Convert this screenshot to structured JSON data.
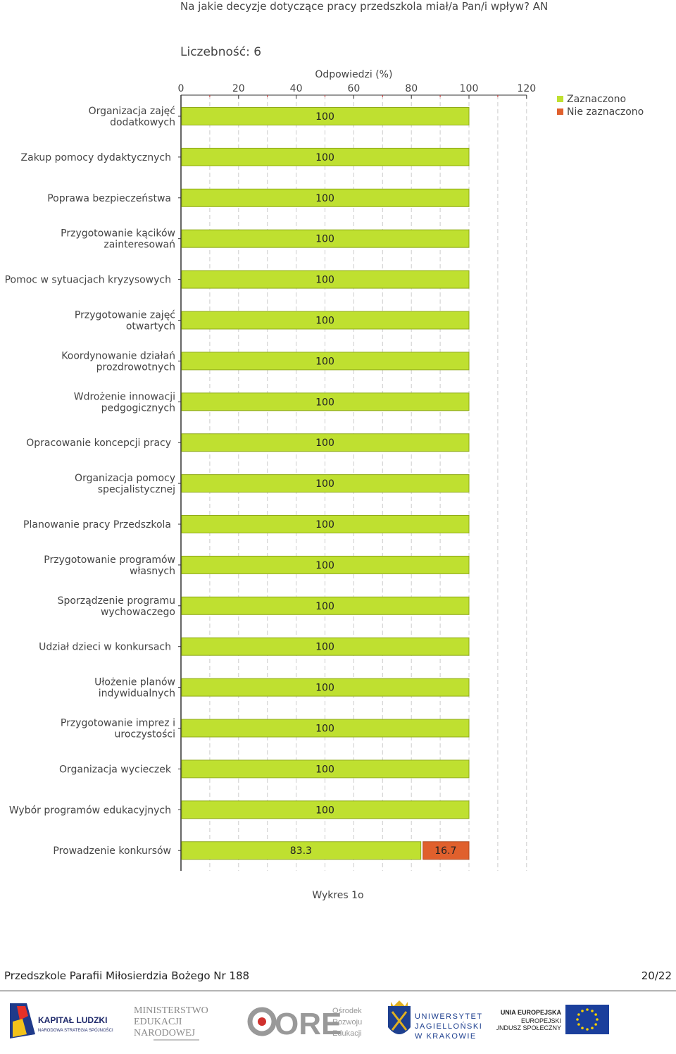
{
  "page_title": "Na jakie decyzje dotyczące pracy przedszkola miał/a Pan/i wpływ? AN",
  "caption": "Wykres 1o",
  "footer": {
    "institution": "Przedszkole Parafii Miłosierdzia Bożego Nr 188",
    "page": "20/22"
  },
  "logos": {
    "kapital": {
      "line1": "KAPITAŁ LUDZKI",
      "line2": "NARODOWA STRATEGIA SPÓJNOŚCI"
    },
    "men": {
      "line1": "MINISTERSTWO",
      "line2": "EDUKACJI",
      "line3": "NARODOWEJ"
    },
    "ore": {
      "mark": "ORE",
      "line1": "Ośrodek",
      "line2": "Rozwoju",
      "line3": "Edukacji"
    },
    "uj": {
      "line1": "UNIWERSYTET",
      "line2": "JAGIELLOŃSKI",
      "line3": "W KRAKOWIE"
    },
    "ue": {
      "line1": "UNIA EUROPEJSKA",
      "line2": "EUROPEJSKI",
      "line3": "FUNDUSZ SPOŁECZNY"
    }
  },
  "colors": {
    "selected": "#bfe030",
    "selected_border": "#8faa1a",
    "not_selected": "#e0602d",
    "not_selected_border": "#b04a20",
    "grid": "#cccccc",
    "axis": "#333333",
    "tick_minor": "#cc3333"
  },
  "chart_data": {
    "type": "bar",
    "orientation": "horizontal",
    "stacked": true,
    "count_label": "Liczebność: 6",
    "xlabel": "Odpowiedzi (%)",
    "xlim": [
      0,
      120
    ],
    "xticks": [
      0,
      20,
      40,
      60,
      80,
      100,
      120
    ],
    "legend_position": "top-right",
    "categories": [
      "Organizacja zajęć dodatkowych",
      "Zakup pomocy dydaktycznych",
      "Poprawa bezpieczeństwa",
      "Przygotowanie kącików zainteresowań",
      "Pomoc w sytuacjach kryzysowych",
      "Przygotowanie zajęć otwartych",
      "Koordynowanie działań prozdrowotnych",
      "Wdrożenie innowacji pedgogicznych",
      "Opracowanie koncepcji pracy",
      "Organizacja pomocy specjalistycznej",
      "Planowanie pracy Przedszkola",
      "Przygotowanie programów własnych",
      "Sporządzenie programu wychowaczego",
      "Udział dzieci w konkursach",
      "Ułożenie planów indywidualnych",
      "Przygotowanie imprez i uroczystości",
      "Organizacja wycieczek",
      "Wybór programów edukacyjnych",
      "Prowadzenie konkursów"
    ],
    "label_lines": [
      [
        "Organizacja zajęć",
        "dodatkowych"
      ],
      [
        "Zakup pomocy dydaktycznych"
      ],
      [
        "Poprawa bezpieczeństwa"
      ],
      [
        "Przygotowanie kącików",
        "zainteresowań"
      ],
      [
        "Pomoc w sytuacjach kryzysowych"
      ],
      [
        "Przygotowanie zajęć",
        "otwartych"
      ],
      [
        "Koordynowanie działań",
        "prozdrowotnych"
      ],
      [
        "Wdrożenie innowacji",
        "pedgogicznych"
      ],
      [
        "Opracowanie koncepcji pracy"
      ],
      [
        "Organizacja pomocy",
        "specjalistycznej"
      ],
      [
        "Planowanie pracy Przedszkola"
      ],
      [
        "Przygotowanie programów",
        "własnych"
      ],
      [
        "Sporządzenie programu",
        "wychowaczego"
      ],
      [
        "Udział dzieci w konkursach"
      ],
      [
        "Ułożenie planów",
        "indywidualnych"
      ],
      [
        "Przygotowanie imprez i",
        "uroczystości"
      ],
      [
        "Organizacja wycieczek"
      ],
      [
        "Wybór programów edukacyjnych"
      ],
      [
        "Prowadzenie konkursów"
      ]
    ],
    "series": [
      {
        "name": "Zaznaczono",
        "values": [
          100,
          100,
          100,
          100,
          100,
          100,
          100,
          100,
          100,
          100,
          100,
          100,
          100,
          100,
          100,
          100,
          100,
          100,
          83.3
        ]
      },
      {
        "name": "Nie zaznaczono",
        "values": [
          0,
          0,
          0,
          0,
          0,
          0,
          0,
          0,
          0,
          0,
          0,
          0,
          0,
          0,
          0,
          0,
          0,
          0,
          16.7
        ]
      }
    ]
  }
}
